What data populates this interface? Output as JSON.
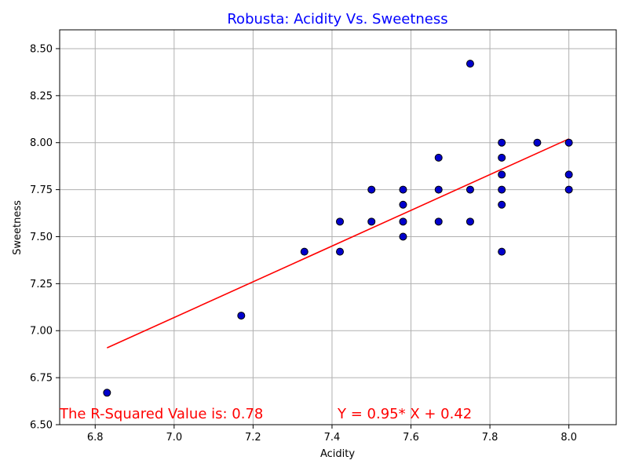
{
  "chart_data": {
    "type": "scatter",
    "title": "Robusta: Acidity Vs. Sweetness",
    "xlabel": "Acidity",
    "ylabel": "Sweetness",
    "xlim": [
      6.71,
      8.12
    ],
    "ylim": [
      6.5,
      8.6
    ],
    "xticks": [
      "6.8",
      "7.0",
      "7.2",
      "7.4",
      "7.6",
      "7.8",
      "8.0"
    ],
    "yticks": [
      "6.50",
      "6.75",
      "7.00",
      "7.25",
      "7.50",
      "7.75",
      "8.00",
      "8.25",
      "8.50"
    ],
    "grid": true,
    "points": [
      {
        "x": 6.83,
        "y": 6.67
      },
      {
        "x": 7.17,
        "y": 7.08
      },
      {
        "x": 7.33,
        "y": 7.42
      },
      {
        "x": 7.42,
        "y": 7.42
      },
      {
        "x": 7.42,
        "y": 7.58
      },
      {
        "x": 7.5,
        "y": 7.58
      },
      {
        "x": 7.5,
        "y": 7.75
      },
      {
        "x": 7.58,
        "y": 7.5
      },
      {
        "x": 7.58,
        "y": 7.58
      },
      {
        "x": 7.58,
        "y": 7.67
      },
      {
        "x": 7.58,
        "y": 7.75
      },
      {
        "x": 7.67,
        "y": 7.58
      },
      {
        "x": 7.67,
        "y": 7.75
      },
      {
        "x": 7.67,
        "y": 7.92
      },
      {
        "x": 7.75,
        "y": 7.58
      },
      {
        "x": 7.75,
        "y": 7.75
      },
      {
        "x": 7.75,
        "y": 8.42
      },
      {
        "x": 7.83,
        "y": 7.42
      },
      {
        "x": 7.83,
        "y": 7.67
      },
      {
        "x": 7.83,
        "y": 7.75
      },
      {
        "x": 7.83,
        "y": 7.83
      },
      {
        "x": 7.83,
        "y": 7.92
      },
      {
        "x": 7.83,
        "y": 8.0
      },
      {
        "x": 7.92,
        "y": 8.0
      },
      {
        "x": 8.0,
        "y": 7.75
      },
      {
        "x": 8.0,
        "y": 7.83
      },
      {
        "x": 8.0,
        "y": 8.0
      }
    ],
    "fit_line": {
      "slope": 0.95,
      "intercept": 0.42,
      "x_range": [
        6.83,
        8.0
      ]
    },
    "annotations": {
      "r_squared": "The R-Squared Value is: 0.78",
      "equation": "Y = 0.95* X + 0.42"
    },
    "colors": {
      "title": "#0000ff",
      "marker_fill": "#0000cc",
      "marker_edge": "#000000",
      "fit_line": "#ff0000",
      "annotation": "#ff0000",
      "grid": "#b0b0b0"
    }
  }
}
